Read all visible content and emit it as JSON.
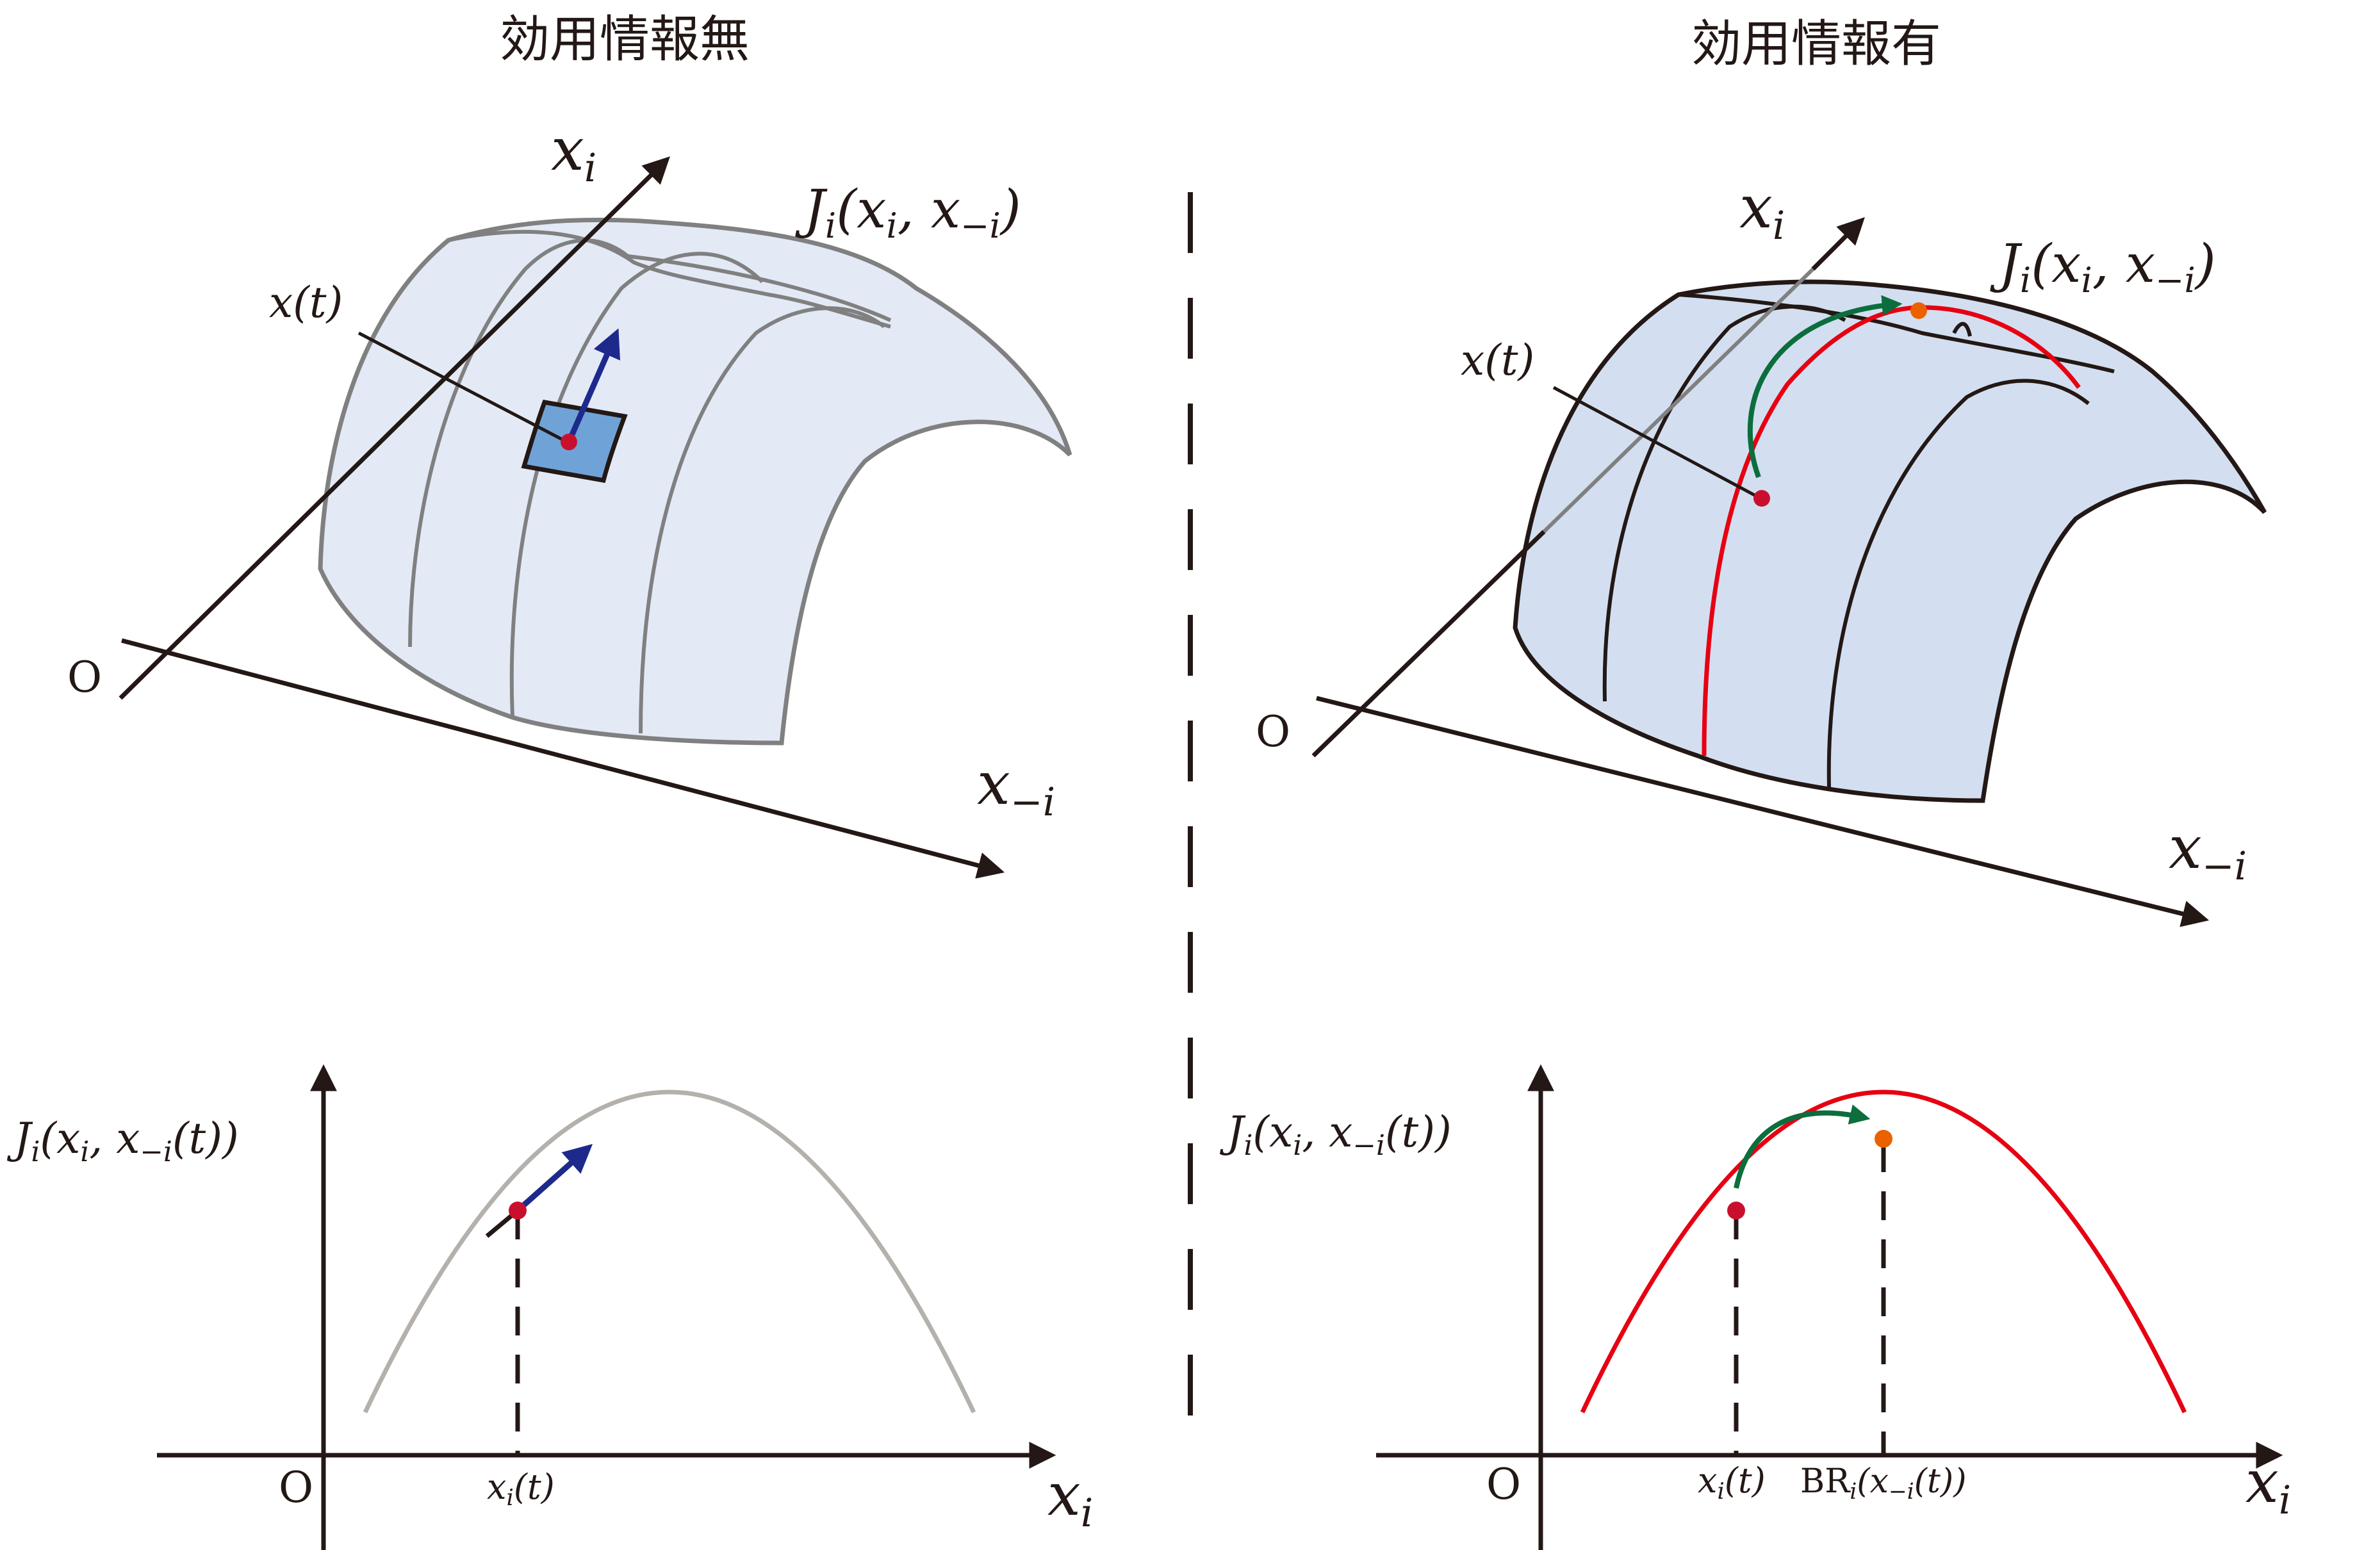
{
  "titles": {
    "left": "効用情報無",
    "right": "効用情報有"
  },
  "surface_labels": {
    "axis_xi": "x",
    "axis_xi_sub": "i",
    "axis_x_minus_i": "x",
    "axis_x_minus_i_sub": "−i",
    "origin": "O",
    "state": "x(t)",
    "utility": "J",
    "utility_sub": "i",
    "utility_args_open": "(x",
    "utility_args_sub1": "i",
    "utility_args_mid": ", x",
    "utility_args_sub2": "−i",
    "utility_args_close": ")"
  },
  "plot_labels": {
    "y_axis_main": "J",
    "y_axis_sub": "i",
    "y_axis_args_a": "(x",
    "y_axis_args_sub1": "i",
    "y_axis_args_b": ", x",
    "y_axis_args_sub2": "−i",
    "y_axis_args_c": "(t))",
    "x_axis_main": "x",
    "x_axis_sub": "i",
    "origin": "O",
    "tick_state_main": "x",
    "tick_state_sub": "i",
    "tick_state_tail": "(t)",
    "tick_br_main": "BR",
    "tick_br_sub": "i",
    "tick_br_args_a": "(x",
    "tick_br_args_sub": "−i",
    "tick_br_args_b": "(t))"
  },
  "colors": {
    "ink": "#231815",
    "surface_fill_left": "#e3eaf6",
    "surface_fill_right": "#d3dff0",
    "surface_line_left": "#808080",
    "gradient_arrow": "#1d2a8c",
    "tangent_patch": "#6fa3d8",
    "best_response_curve": "#e60012",
    "jump_arrow": "#0b6e3c",
    "optimum_point": "#eb6100",
    "state_point": "#c8102e",
    "gray_curve": "#b4b0ac"
  }
}
